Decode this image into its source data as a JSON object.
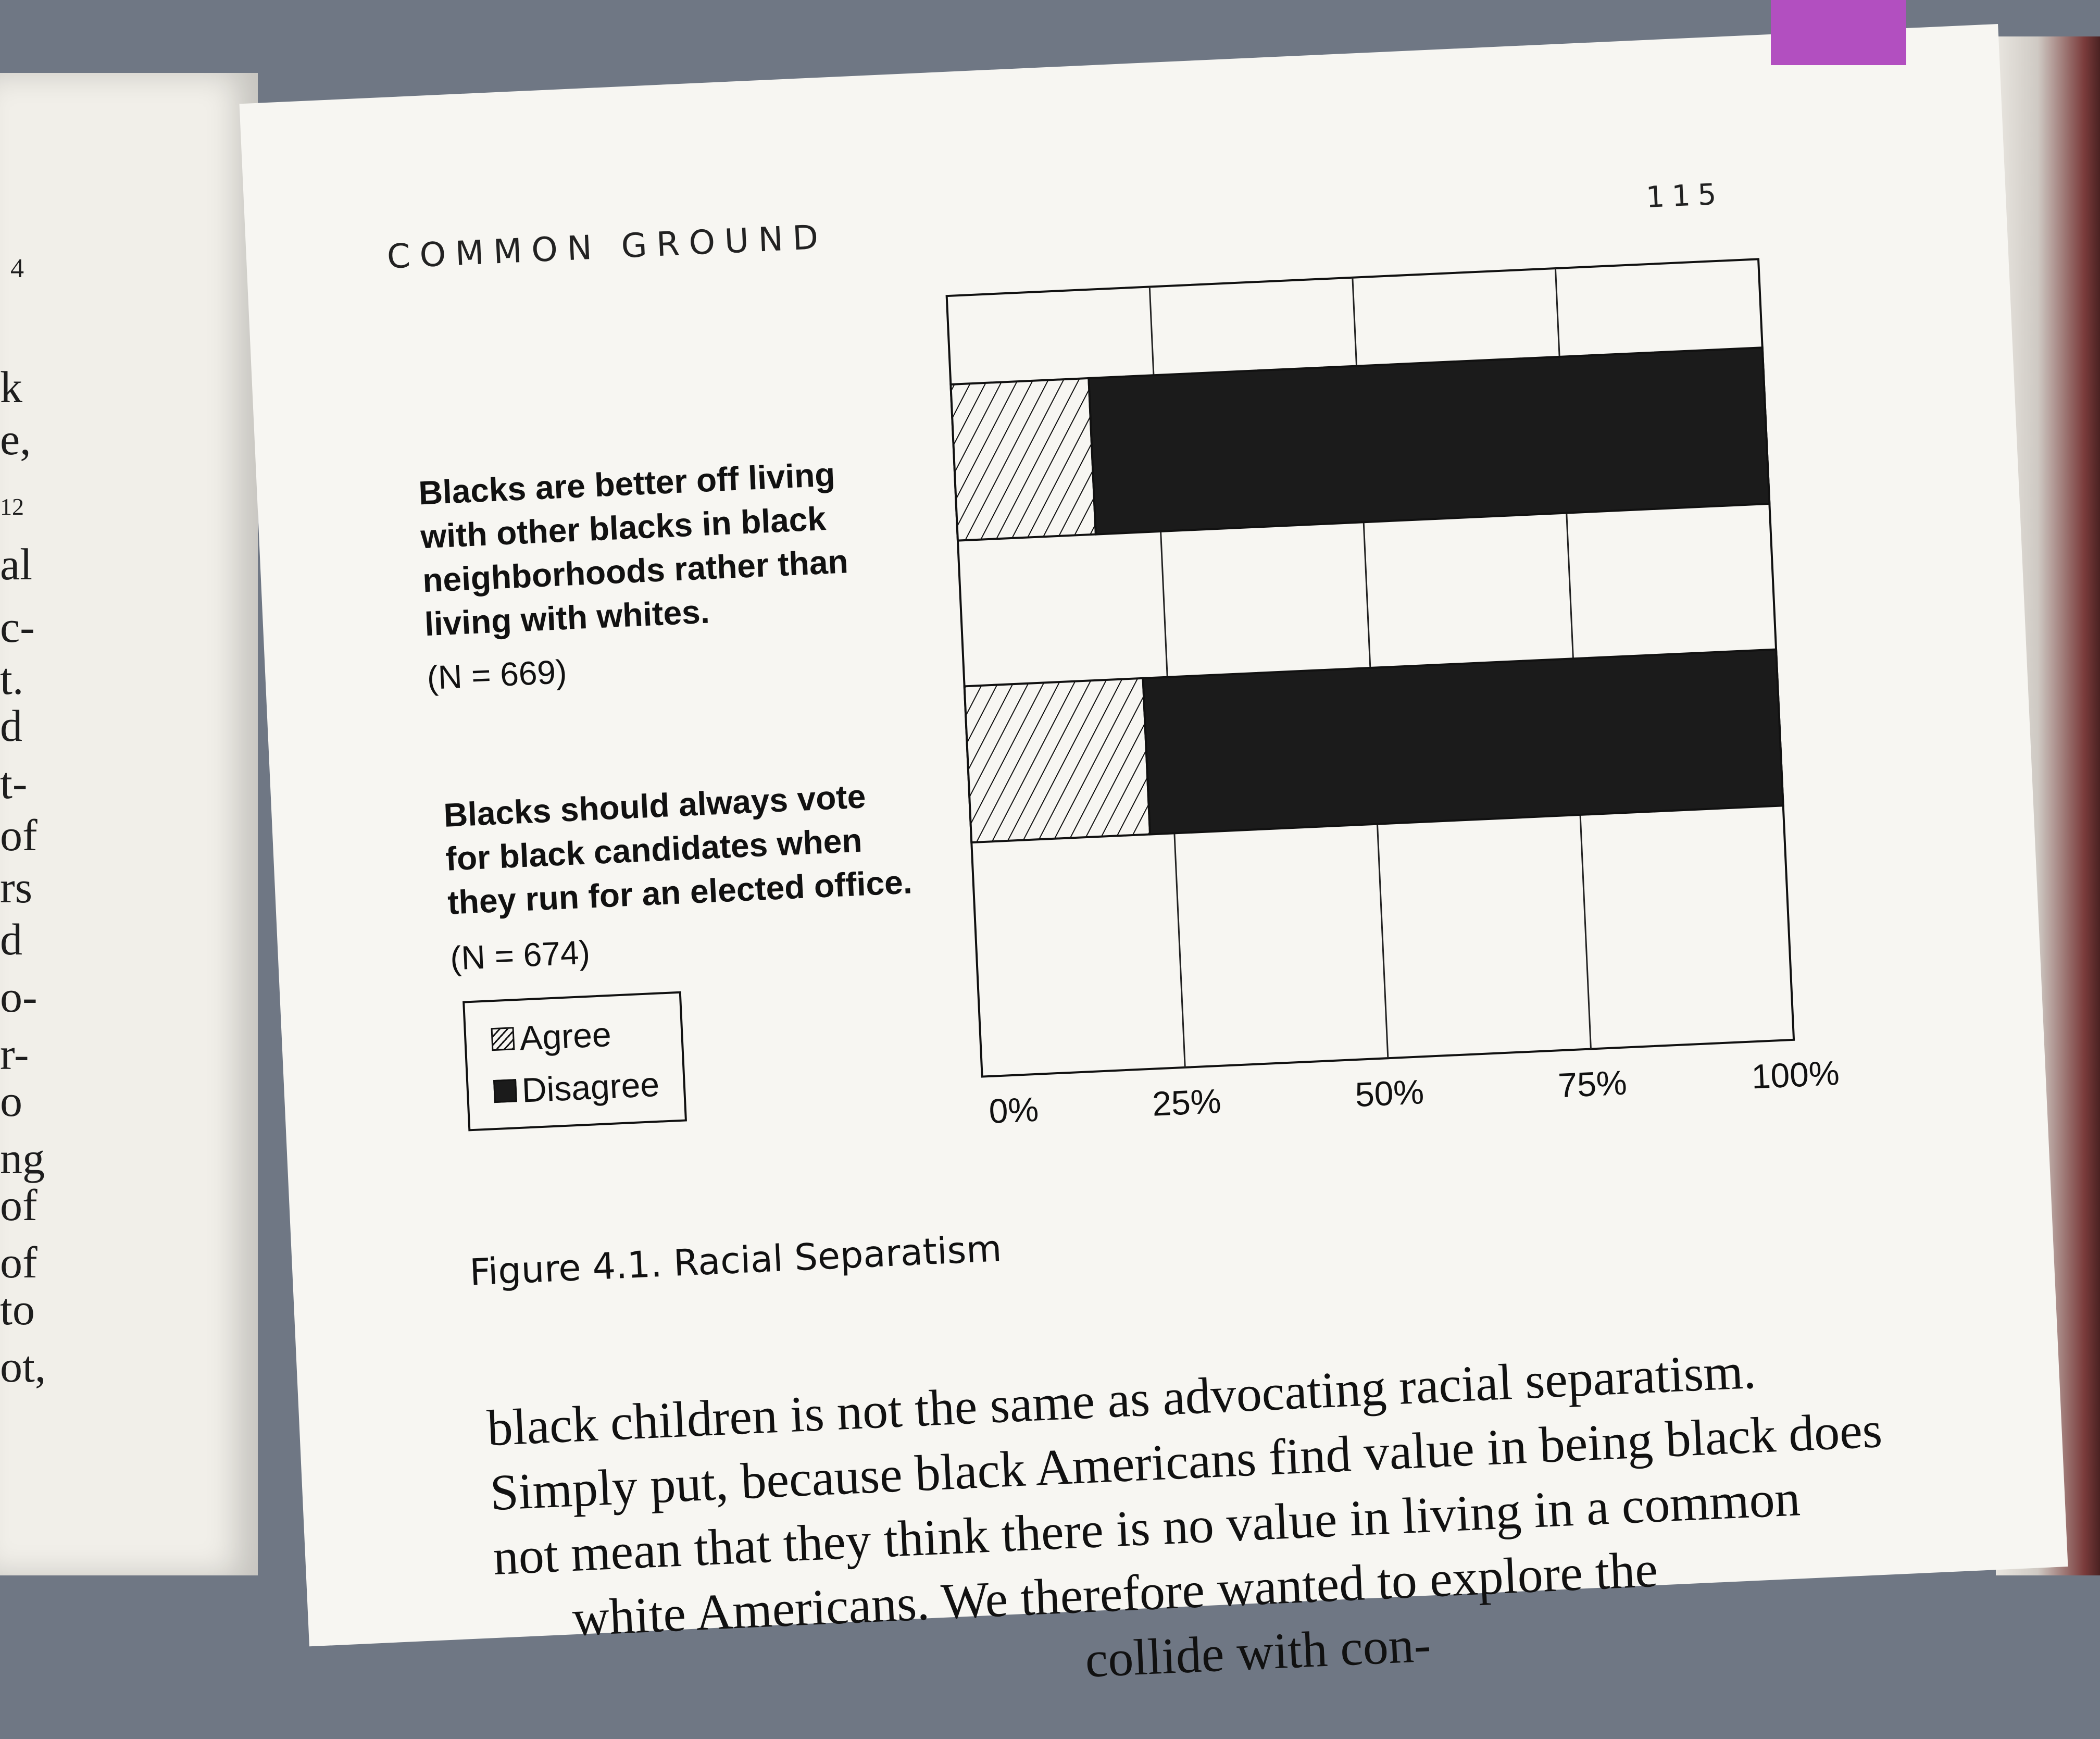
{
  "left_page": {
    "page_number_fragment": "4",
    "margin_fragments": [
      "k",
      "e,",
      "12",
      "al",
      "c-",
      "t.",
      "d",
      "t-",
      "of",
      "rs",
      "d",
      "o-",
      "r-",
      "o",
      "ng",
      "of",
      "of",
      "to",
      "ot,"
    ]
  },
  "header": {
    "running_head": "COMMON GROUND",
    "page_number": "115"
  },
  "statements": [
    {
      "lines": [
        "Blacks are better off living",
        "with other blacks in black",
        "neighborhoods rather than",
        "living with whites."
      ],
      "n_label": "(N = 669)"
    },
    {
      "lines": [
        "Blacks should always vote",
        "for black candidates when",
        "they run for an elected office."
      ],
      "n_label": "(N = 674)"
    }
  ],
  "legend": {
    "agree": "Agree",
    "disagree": "Disagree"
  },
  "chart_data": {
    "type": "bar",
    "orientation": "horizontal",
    "stacked": true,
    "categories": [
      "Blacks are better off living with other blacks in black neighborhoods rather than living with whites. (N = 669)",
      "Blacks should always vote for black candidates when they run for an elected office. (N = 674)"
    ],
    "series": [
      {
        "name": "Agree",
        "values": [
          17,
          22
        ],
        "color": "#f7f6f2",
        "pattern": "hatched"
      },
      {
        "name": "Disagree",
        "values": [
          83,
          78
        ],
        "color": "#1b1b1b",
        "pattern": "solid"
      }
    ],
    "xlim": [
      0,
      100
    ],
    "x_ticks": [
      "0%",
      "25%",
      "50%",
      "75%",
      "100%"
    ],
    "grid": true,
    "legend_position": "bottom-left"
  },
  "caption": "Figure 4.1. Racial Separatism",
  "body_lines": [
    "black children is not the same as advocating racial separatism.",
    "Simply put, because black Americans find value in being black does",
    "not mean that they think there is no value in living in a common",
    "      white Americans. We therefore wanted to explore the",
    "                                              collide with con-"
  ]
}
